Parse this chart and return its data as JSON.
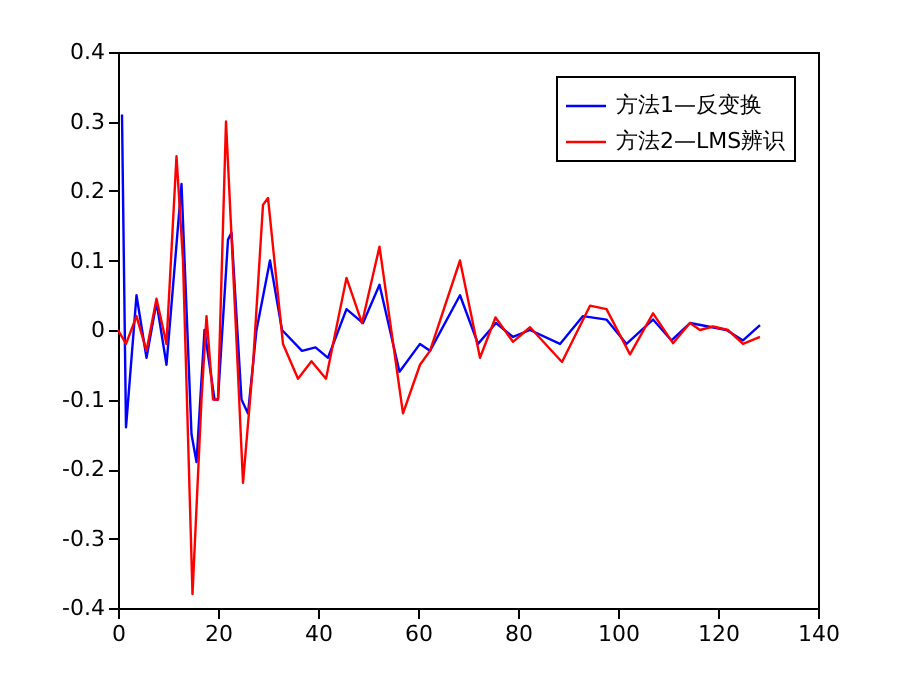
{
  "chart_data": {
    "type": "line",
    "legend": "top right",
    "grid": false,
    "marker": "none",
    "line_style": "solid",
    "xlim": [
      0,
      140
    ],
    "xticks": [
      0,
      20,
      40,
      60,
      80,
      100,
      120,
      140
    ],
    "ylim": [
      -0.4,
      0.4
    ],
    "yticks": [
      -0.4,
      -0.3,
      -0.2,
      -0.1,
      0,
      0.1,
      0.2,
      0.3,
      0.4
    ],
    "series": [
      {
        "name": "方法1—反变换",
        "color": "#0000ff",
        "x": [
          0.8,
          1.6,
          3.7,
          5.7,
          7.7,
          9.7,
          12.7,
          14.7,
          15.7,
          17.3,
          19.3,
          20,
          22,
          22.7,
          24.7,
          26,
          27.7,
          30.4,
          32.8,
          36.8,
          39.5,
          42,
          45.7,
          49,
          52.3,
          56.3,
          60.4,
          62.4,
          68.4,
          72,
          75.6,
          79,
          82.4,
          88.4,
          93,
          97.7,
          101.7,
          107,
          110.7,
          114.4,
          121.7,
          125,
          128.4
        ],
        "values": [
          0.31,
          -0.14,
          0.05,
          -0.04,
          0.04,
          -0.05,
          0.21,
          -0.15,
          -0.19,
          0.0,
          -0.1,
          -0.1,
          0.13,
          0.14,
          -0.1,
          -0.12,
          0.0,
          0.1,
          0.0,
          -0.03,
          -0.025,
          -0.04,
          0.03,
          0.01,
          0.065,
          -0.06,
          -0.02,
          -0.03,
          0.05,
          -0.02,
          0.01,
          -0.01,
          0.0,
          -0.02,
          0.02,
          0.015,
          -0.02,
          0.015,
          -0.015,
          0.01,
          0.0,
          -0.015,
          0.007
        ]
      },
      {
        "name": "方法2—LMS辨识",
        "color": "#ff0000",
        "x": [
          0,
          1.6,
          3.7,
          5.7,
          7.7,
          9.7,
          11.7,
          13,
          14.9,
          16.7,
          17.7,
          19,
          20,
          21.6,
          23.6,
          25,
          27,
          29,
          30,
          33,
          36,
          38.7,
          41.6,
          45.7,
          48.8,
          52.3,
          57,
          60.4,
          62.4,
          68.4,
          72.4,
          75.5,
          79,
          82.4,
          88.8,
          94.4,
          97.7,
          102.4,
          107,
          111,
          114.4,
          116.4,
          119,
          122,
          125,
          128.4
        ],
        "values": [
          0.0,
          -0.02,
          0.02,
          -0.03,
          0.045,
          -0.02,
          0.25,
          0.1,
          -0.38,
          -0.1,
          0.02,
          -0.1,
          -0.1,
          0.3,
          0.0,
          -0.22,
          -0.05,
          0.18,
          0.19,
          -0.02,
          -0.07,
          -0.045,
          -0.07,
          0.075,
          0.01,
          0.12,
          -0.12,
          -0.05,
          -0.03,
          0.1,
          -0.04,
          0.018,
          -0.017,
          0.004,
          -0.046,
          0.035,
          0.03,
          -0.035,
          0.024,
          -0.019,
          0.01,
          0.0,
          0.005,
          0.0,
          -0.02,
          -0.01
        ]
      }
    ]
  }
}
